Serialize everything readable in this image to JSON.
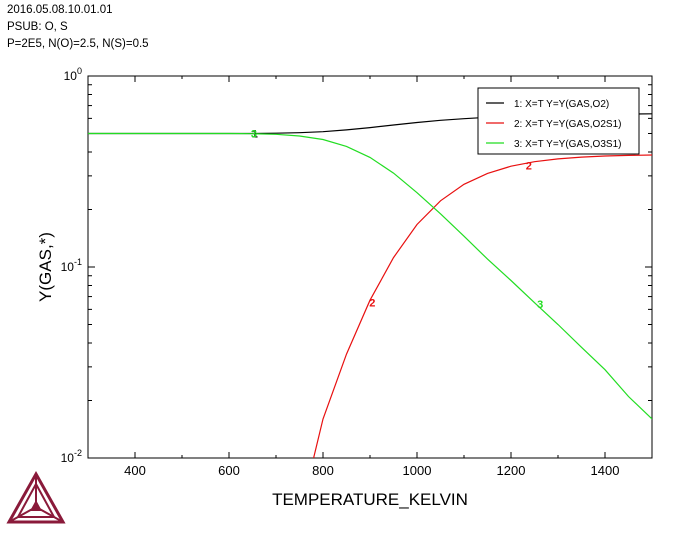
{
  "header": {
    "line1": "2016.05.08.10.01.01",
    "line2": "PSUB: O, S",
    "line3": "P=2E5, N(O)=2.5, N(S)=0.5"
  },
  "chart_data": {
    "type": "line",
    "xlabel": "TEMPERATURE_KELVIN",
    "ylabel": "Y(GAS,*)",
    "xlim": [
      300,
      1500
    ],
    "ylim": [
      0.01,
      1
    ],
    "yscale": "log",
    "x_ticks": [
      400,
      600,
      800,
      1000,
      1200,
      1400
    ],
    "y_ticks": [
      {
        "base": "10",
        "exp": "0"
      },
      {
        "base": "10",
        "exp": "-1"
      },
      {
        "base": "10",
        "exp": "-2"
      }
    ],
    "grid": false,
    "legend_position": "top-right",
    "series": [
      {
        "name": "1:  X=T  Y=Y(GAS,O2)",
        "marker": "1",
        "color": "#000000",
        "x": [
          300,
          500,
          600,
          650,
          700,
          750,
          800,
          850,
          900,
          950,
          1000,
          1050,
          1100,
          1150,
          1200,
          1250,
          1300,
          1350,
          1400,
          1450,
          1500
        ],
        "y": [
          0.5,
          0.5,
          0.5,
          0.5,
          0.502,
          0.505,
          0.511,
          0.522,
          0.537,
          0.554,
          0.571,
          0.586,
          0.598,
          0.608,
          0.615,
          0.62,
          0.624,
          0.627,
          0.63,
          0.632,
          0.634
        ]
      },
      {
        "name": "2:  X=T  Y=Y(GAS,O2S1)",
        "marker": "2",
        "color": "#e81010",
        "x": [
          780,
          800,
          850,
          900,
          950,
          1000,
          1050,
          1100,
          1150,
          1200,
          1250,
          1300,
          1350,
          1400,
          1450,
          1500
        ],
        "y": [
          0.01,
          0.016,
          0.035,
          0.067,
          0.112,
          0.167,
          0.222,
          0.271,
          0.309,
          0.337,
          0.356,
          0.368,
          0.376,
          0.381,
          0.384,
          0.386
        ]
      },
      {
        "name": "3:  X=T  Y=Y(GAS,O3S1)",
        "marker": "3",
        "color": "#22dd22",
        "x": [
          300,
          500,
          600,
          650,
          700,
          750,
          800,
          850,
          900,
          950,
          1000,
          1050,
          1100,
          1150,
          1200,
          1250,
          1300,
          1350,
          1400,
          1450,
          1500
        ],
        "y": [
          0.5,
          0.5,
          0.5,
          0.499,
          0.495,
          0.485,
          0.465,
          0.428,
          0.375,
          0.31,
          0.245,
          0.19,
          0.145,
          0.11,
          0.085,
          0.065,
          0.05,
          0.038,
          0.029,
          0.021,
          0.016
        ]
      }
    ]
  }
}
